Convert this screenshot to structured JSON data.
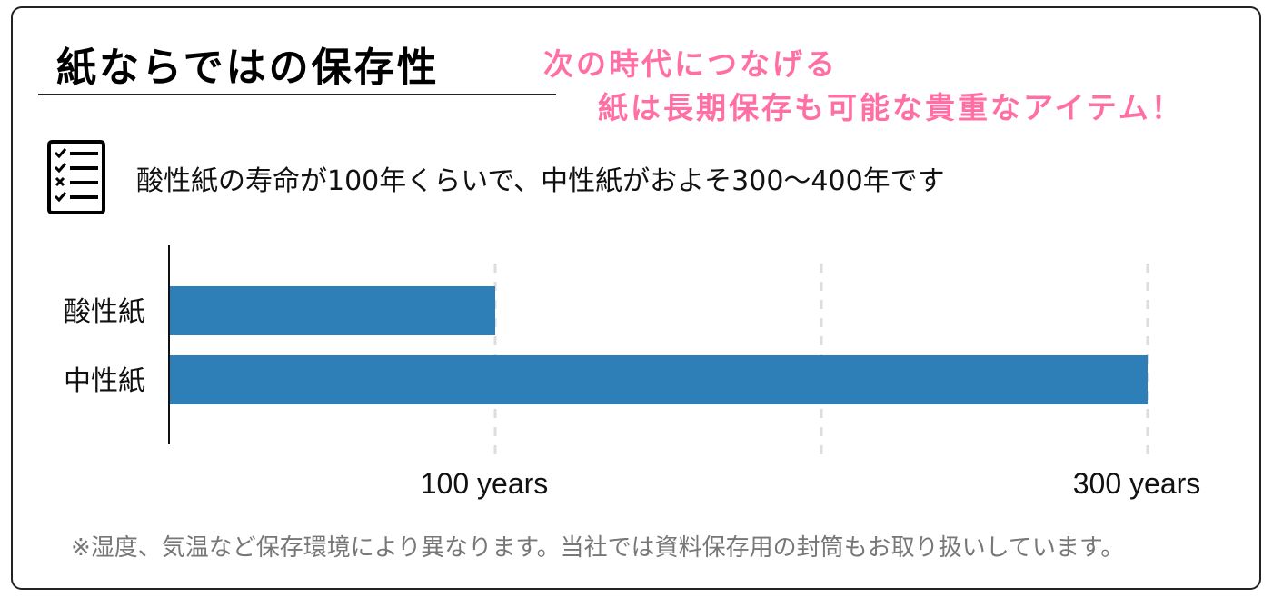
{
  "title": "紙ならではの保存性",
  "tagline": {
    "line1": "次の時代につなげる",
    "line2": "紙は長期保存も可能な貴重なアイテム！"
  },
  "summary": {
    "icon": "checklist-icon",
    "text": "酸性紙の寿命が100年くらいで、中性紙がおよそ300～400年です"
  },
  "colors": {
    "accent_pink": "#ff6fa4",
    "bar": "#2e7fb8",
    "grid": "#dddddd"
  },
  "chart_data": {
    "type": "bar",
    "orientation": "horizontal",
    "categories": [
      "酸性紙",
      "中性紙"
    ],
    "values": [
      100,
      300
    ],
    "xlim": [
      0,
      350
    ],
    "xticks": [
      100,
      200,
      300
    ],
    "xtick_labels": [
      "100 years",
      "",
      "300 years"
    ],
    "grid": "vertical dashed",
    "legend": "none"
  },
  "footnote": "※湿度、気温など保存環境により異なります。当社では資料保存用の封筒もお取り扱いしています。"
}
